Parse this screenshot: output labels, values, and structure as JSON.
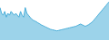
{
  "chart_data": {
    "type": "area",
    "values": [
      8.5,
      7.0,
      6.5,
      7.5,
      6.0,
      7.0,
      6.5,
      7.5,
      7.0,
      6.5,
      7.0,
      6.5,
      6.0,
      7.5,
      6.5,
      6.0,
      8.5,
      7.0,
      6.5,
      6.0,
      5.5,
      5.2,
      5.0,
      4.8,
      4.5,
      4.3,
      4.0,
      3.8,
      3.6,
      3.4,
      3.2,
      3.0,
      2.8,
      2.7,
      2.6,
      2.5,
      2.4,
      2.5,
      2.6,
      2.7,
      2.8,
      2.9,
      3.0,
      3.1,
      3.2,
      3.3,
      3.4,
      3.5,
      3.6,
      3.8,
      4.0,
      4.2,
      4.0,
      3.8,
      3.6,
      3.8,
      4.0,
      4.3,
      4.6,
      5.0,
      5.5,
      6.0,
      6.5,
      7.0,
      7.5,
      8.0,
      8.5,
      9.0,
      9.5,
      10.0
    ],
    "color": "#4aaed9",
    "ylim": [
      0,
      10.5
    ],
    "grid": false,
    "tick_labels": false
  }
}
